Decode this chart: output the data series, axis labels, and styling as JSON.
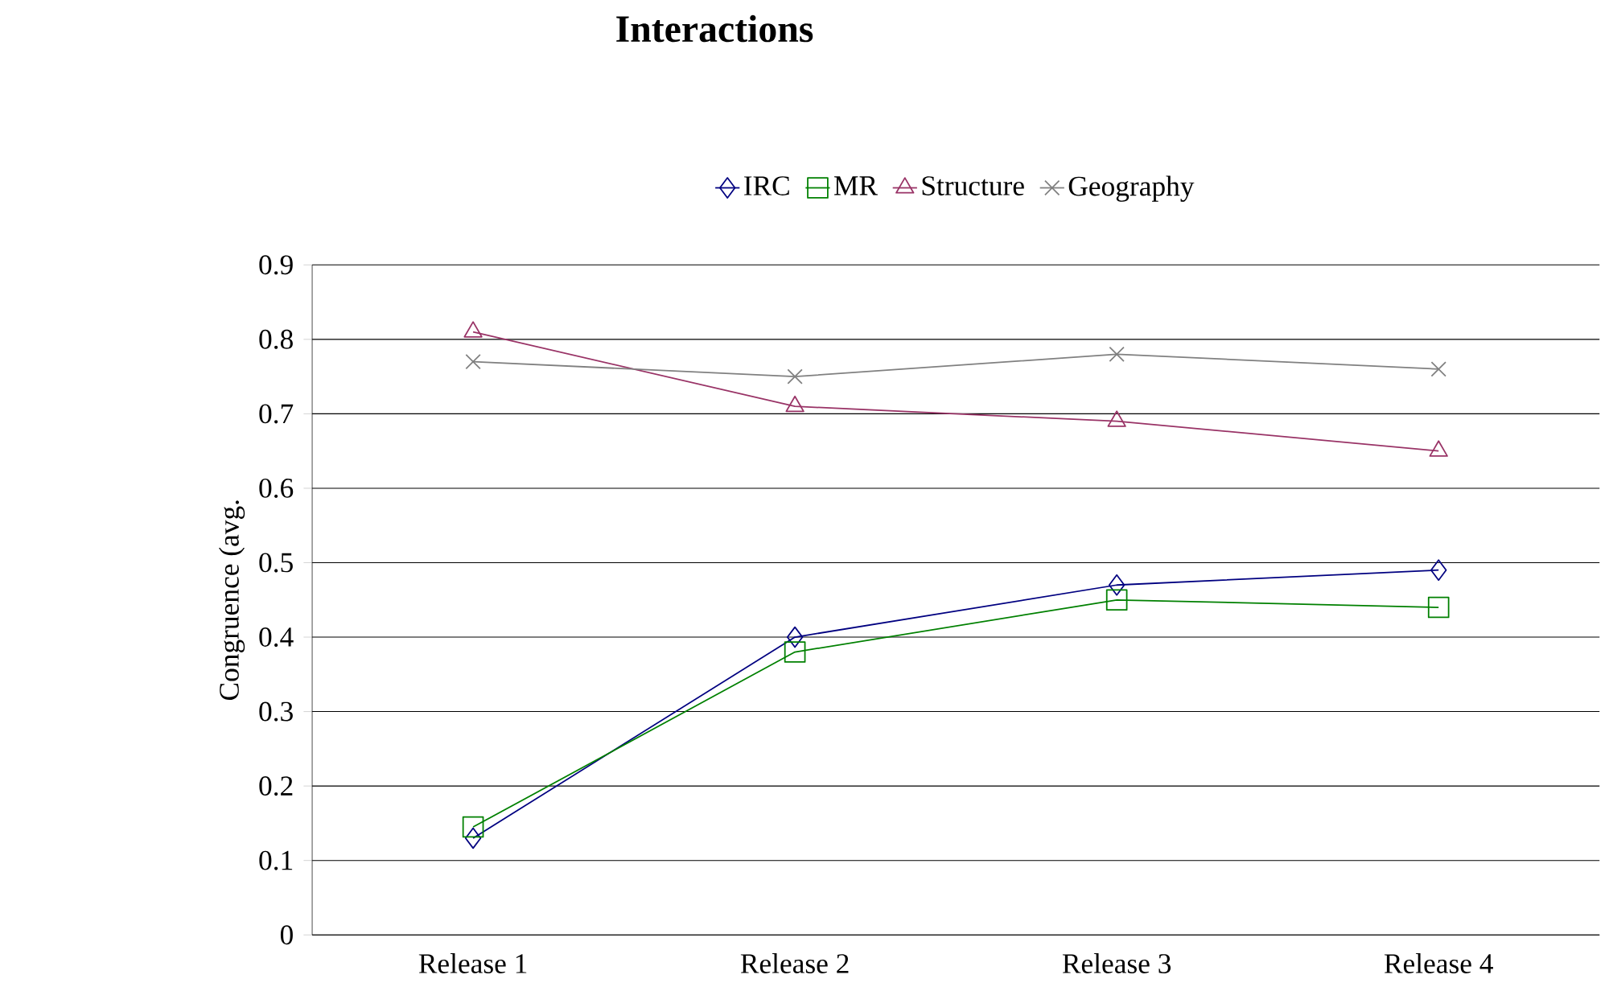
{
  "chart_data": {
    "type": "line",
    "title": "Interactions",
    "ylabel": "Congruence (avg.",
    "categories": [
      "Release 1",
      "Release 2",
      "Release 3",
      "Release 4"
    ],
    "series": [
      {
        "name": "IRC",
        "color": "#000080",
        "marker": "diamond",
        "values": [
          0.13,
          0.4,
          0.47,
          0.49
        ]
      },
      {
        "name": "MR",
        "color": "#008000",
        "marker": "square",
        "values": [
          0.145,
          0.38,
          0.45,
          0.44
        ]
      },
      {
        "name": "Structure",
        "color": "#993366",
        "marker": "triangle",
        "values": [
          0.81,
          0.71,
          0.69,
          0.65
        ]
      },
      {
        "name": "Geography",
        "color": "#808080",
        "marker": "cross",
        "values": [
          0.77,
          0.75,
          0.78,
          0.76
        ]
      }
    ],
    "ylim": [
      0,
      0.9
    ],
    "yticks": [
      0,
      0.1,
      0.2,
      0.3,
      0.4,
      0.5,
      0.6,
      0.7,
      0.8,
      0.9
    ],
    "grid": "y",
    "legend": "top",
    "line_style": "solid"
  }
}
